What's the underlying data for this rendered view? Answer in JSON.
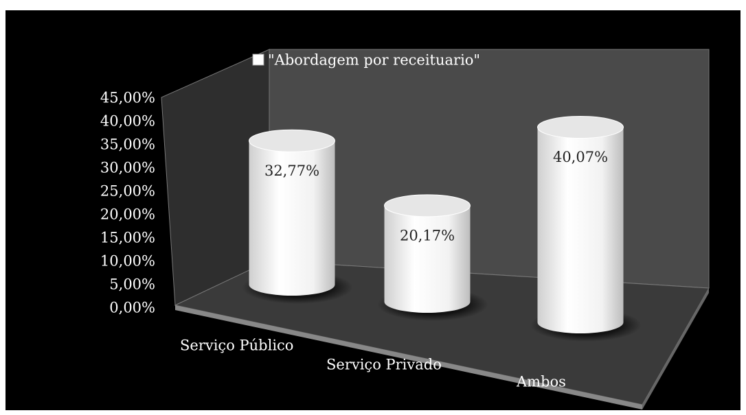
{
  "chart_data": {
    "type": "bar",
    "categories": [
      "Serviço Público",
      "Serviço Privado",
      "Ambos"
    ],
    "series": [
      {
        "name": "\"Abordagem por receituario\"",
        "color": "#ffffff",
        "values": [
          32.77,
          20.17,
          40.07
        ],
        "value_labels": [
          "32,77%",
          "20,17%",
          "40,07%"
        ]
      }
    ],
    "ylim": [
      0,
      45
    ],
    "yticks": [
      {
        "value": 0,
        "label": "0,00%"
      },
      {
        "value": 5,
        "label": "5,00%"
      },
      {
        "value": 10,
        "label": "10,00%"
      },
      {
        "value": 15,
        "label": "15,00%"
      },
      {
        "value": 20,
        "label": "20,00%"
      },
      {
        "value": 25,
        "label": "25,00%"
      },
      {
        "value": 30,
        "label": "30,00%"
      },
      {
        "value": 35,
        "label": "35,00%"
      },
      {
        "value": 40,
        "label": "40,00%"
      },
      {
        "value": 45,
        "label": "45,00%"
      }
    ],
    "grid": false
  }
}
